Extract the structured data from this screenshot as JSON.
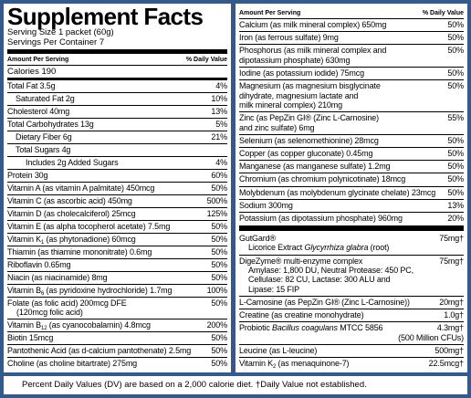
{
  "title": "Supplement Facts",
  "serving": [
    "Serving Size 1 packet (60g)",
    "Servings Per Container 7"
  ],
  "left_table": {
    "header": [
      "Amount Per Serving",
      "% Daily Value"
    ],
    "calories": "Calories 190",
    "rows": [
      {
        "lines": [
          "Total Fat 3.5g"
        ],
        "dv": "4%"
      },
      {
        "lines": [
          "Saturated Fat 2g"
        ],
        "dv": "10%",
        "indent": 1
      },
      {
        "lines": [
          "Cholesterol 40mg"
        ],
        "dv": "13%"
      },
      {
        "lines": [
          "Total Carbohydrates 13g"
        ],
        "dv": "5%"
      },
      {
        "lines": [
          "Dietary Fiber 6g"
        ],
        "dv": "21%",
        "indent": 1
      },
      {
        "lines": [
          "Total Sugars 4g"
        ],
        "indent": 1
      },
      {
        "lines": [
          "Includes 2g Added Sugars"
        ],
        "dv": "4%",
        "indent": 2
      },
      {
        "lines": [
          "Protein 30g"
        ],
        "dv": "60%"
      },
      {
        "lines": [
          "Vitamin A (as vitamin A palmitate) 450mcg"
        ],
        "dv": "50%"
      },
      {
        "lines": [
          "Vitamin C (as ascorbic acid) 450mg"
        ],
        "dv": "500%"
      },
      {
        "lines": [
          "Vitamin D (as cholecalciferol) 25mcg"
        ],
        "dv": "125%"
      },
      {
        "lines": [
          "Vitamin E (as alpha tocopherol acetate) 7.5mg"
        ],
        "dv": "50%"
      },
      {
        "lines": [
          [
            "Vitamin K",
            {
              "sub": "1"
            },
            " (as phytonadione) 60mcg"
          ]
        ],
        "dv": "50%"
      },
      {
        "lines": [
          "Thiamin (as thiamine mononitrate) 0.6mg"
        ],
        "dv": "50%"
      },
      {
        "lines": [
          "Riboflavin 0.65mg"
        ],
        "dv": "50%"
      },
      {
        "lines": [
          "Niacin (as niacinamide) 8mg"
        ],
        "dv": "50%"
      },
      {
        "lines": [
          [
            "Vitamin B",
            {
              "sub": "6"
            },
            " (as pyridoxine hydrochloride) 1.7mg"
          ]
        ],
        "dv": "100%"
      },
      {
        "lines": [
          "Folate (as folic acid) 200mcg DFE",
          "(120mcg folic acid)"
        ],
        "dv": "50%",
        "hang": true
      },
      {
        "lines": [
          [
            "Vitamin B",
            {
              "sub": "12"
            },
            " (as cyanocobalamin) 4.8mcg"
          ]
        ],
        "dv": "200%"
      },
      {
        "lines": [
          "Biotin 15mcg"
        ],
        "dv": "50%"
      },
      {
        "lines": [
          "Pantothenic Acid (as d-calcium pantothenate) 2.5mg"
        ],
        "dv": "50%"
      },
      {
        "lines": [
          "Choline (as choline bitartrate) 275mg"
        ],
        "dv": "50%"
      }
    ]
  },
  "right_table": {
    "header": [
      "Amount Per Serving",
      "% Daily Value"
    ],
    "rows": [
      {
        "lines": [
          "Calcium (as milk mineral complex) 650mg"
        ],
        "dv": "50%"
      },
      {
        "lines": [
          "Iron (as ferrous sulfate) 9mg"
        ],
        "dv": "50%"
      },
      {
        "lines": [
          "Phosphorus (as milk mineral complex and",
          "dipotassium phosphate) 630mg"
        ],
        "dv": "50%"
      },
      {
        "lines": [
          "Iodine (as potassium iodide) 75mcg"
        ],
        "dv": "50%"
      },
      {
        "lines": [
          "Magnesium (as magnesium bisglycinate",
          "dihydrate, magnesium lactate and",
          "milk mineral complex) 210mg"
        ],
        "dv": "50%"
      },
      {
        "lines": [
          "Zinc (as PepZin GI® (Zinc L-Carnosine)",
          "and zinc sulfate) 6mg"
        ],
        "dv": "55%"
      },
      {
        "lines": [
          "Selenium (as selenomethionine) 28mcg"
        ],
        "dv": "50%"
      },
      {
        "lines": [
          "Copper (as copper gluconate) 0.45mg"
        ],
        "dv": "50%"
      },
      {
        "lines": [
          "Manganese (as manganese sulfate) 1.2mg"
        ],
        "dv": "50%"
      },
      {
        "lines": [
          "Chromium (as chromium polynicotinate) 18mcg"
        ],
        "dv": "50%"
      },
      {
        "lines": [
          "Molybdenum (as molybdenum glycinate chelate) 23mcg"
        ],
        "dv": "50%"
      },
      {
        "lines": [
          "Sodium 300mg"
        ],
        "dv": "13%"
      },
      {
        "lines": [
          "Potassium (as dipotassium phosphate) 960mg"
        ],
        "dv": "20%"
      }
    ],
    "other_rows": [
      {
        "lines": [
          "GutGard®",
          [
            "Licorice Extract ",
            {
              "i": "Glycyrrhiza glabra"
            },
            " (root)"
          ]
        ],
        "dv": "75mg†",
        "hang": true
      },
      {
        "lines": [
          "DigeZyme® multi-enzyme complex",
          "Amylase: 1,800 DU, Neutral Protease: 450 PC,",
          "Cellulase: 82 CU, Lactase: 300 ALU and",
          "Lipase: 15 FIP"
        ],
        "dv": "75mg†",
        "hang": true
      },
      {
        "lines": [
          "L-Carnosine (as PepZin GI® (Zinc L-Carnosine))"
        ],
        "dv": "20mg†"
      },
      {
        "lines": [
          "Creatine (as creatine monohydrate)"
        ],
        "dv": "1.0g†"
      },
      {
        "lines": [
          [
            "Probiotic ",
            {
              "i": "Bacillus coagulans"
            },
            " MTCC 5856"
          ]
        ],
        "dv": [
          "4.3mg†",
          "(500 Million CFUs)"
        ]
      },
      {
        "lines": [
          "Leucine (as L-leucine)"
        ],
        "dv": "500mg†"
      },
      {
        "lines": [
          [
            "Vitamin K",
            {
              "sub": "2"
            },
            " (as menaquinone-7)"
          ]
        ],
        "dv": "22.5mcg†"
      }
    ]
  },
  "footnote": "Percent Daily Values (DV) are based on a 2,000 calorie diet. †Daily Value not established."
}
